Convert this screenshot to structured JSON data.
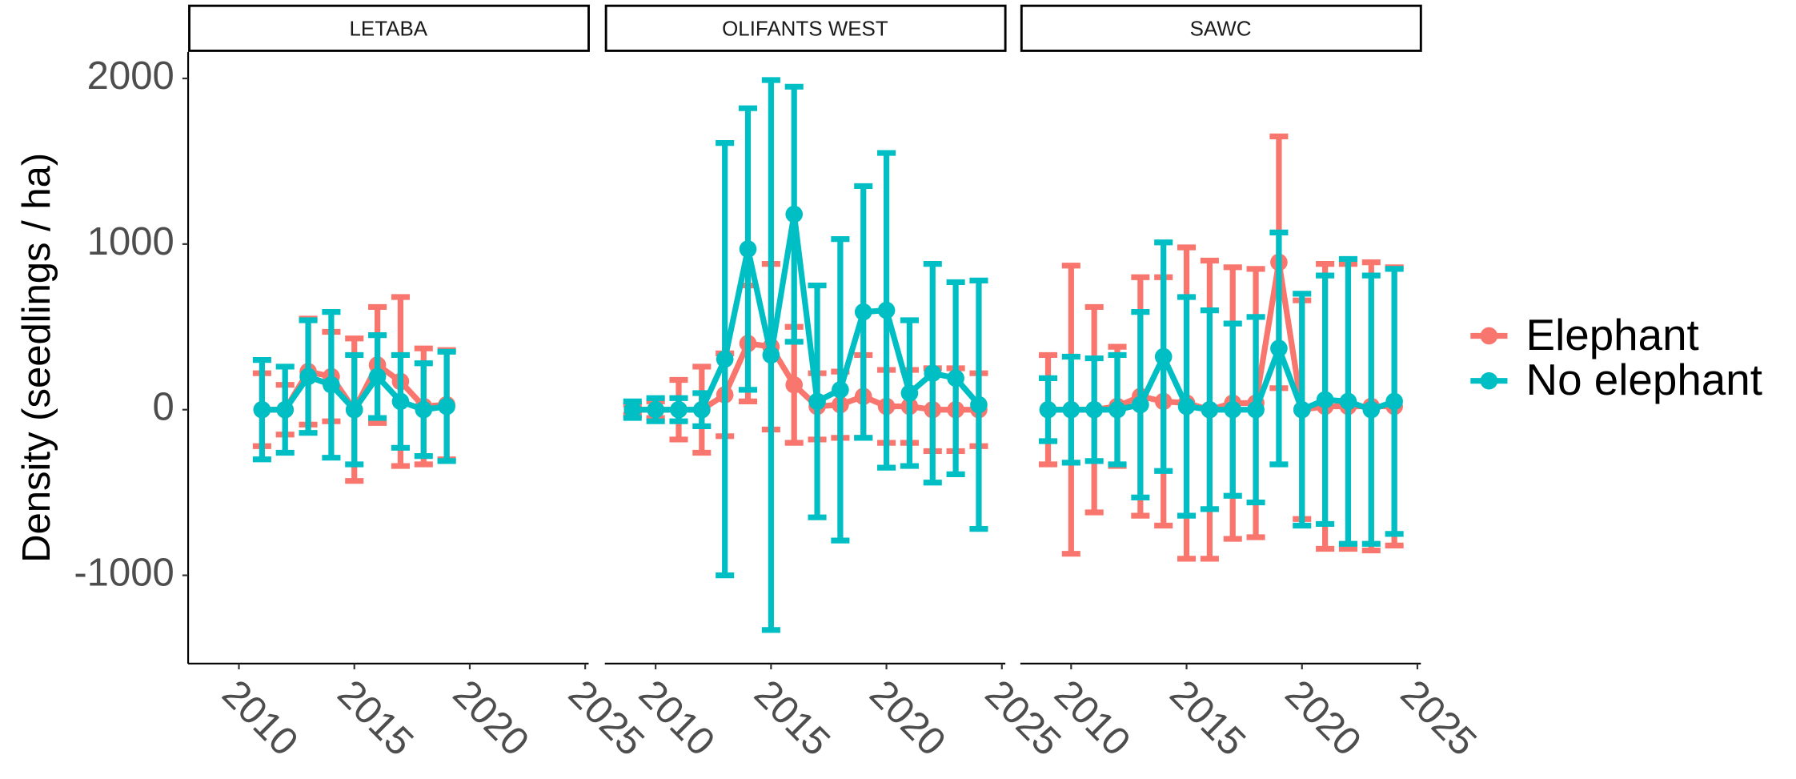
{
  "chart_data": [
    {
      "type": "line",
      "title": "LETABA",
      "y_label": "Density (seedlings / ha)",
      "x": [
        2011,
        2012,
        2013,
        2014,
        2015,
        2016,
        2017,
        2018,
        2019
      ],
      "xlim": [
        2007.8,
        2025.15
      ],
      "xticks": [
        2010,
        2015,
        2020,
        2025
      ],
      "ylim": [
        -1533,
        2160
      ],
      "yticks": [
        -1000,
        0,
        1000,
        2000
      ],
      "series": [
        {
          "name": "Elephant",
          "color": "#F8766D",
          "values": [
            0,
            0,
            230,
            200,
            0,
            270,
            170,
            20,
            30
          ],
          "errors": [
            220,
            150,
            320,
            270,
            430,
            350,
            510,
            350,
            330
          ]
        },
        {
          "name": "No elephant",
          "color": "#00BFC4",
          "values": [
            0,
            0,
            200,
            150,
            0,
            200,
            50,
            0,
            20
          ],
          "errors": [
            300,
            260,
            340,
            440,
            330,
            250,
            280,
            280,
            330
          ]
        }
      ]
    },
    {
      "type": "line",
      "title": "OLIFANTS WEST",
      "x": [
        2009,
        2010,
        2011,
        2012,
        2013,
        2014,
        2015,
        2016,
        2017,
        2018,
        2019,
        2020,
        2021,
        2022,
        2023,
        2024
      ],
      "xlim": [
        2007.8,
        2025.15
      ],
      "xticks": [
        2010,
        2015,
        2020,
        2025
      ],
      "ylim": [
        -1533,
        2160
      ],
      "series": [
        {
          "name": "Elephant",
          "color": "#F8766D",
          "values": [
            0,
            0,
            0,
            0,
            90,
            400,
            380,
            150,
            20,
            30,
            80,
            20,
            20,
            0,
            0,
            0
          ],
          "errors": [
            30,
            50,
            180,
            260,
            250,
            350,
            500,
            350,
            200,
            200,
            250,
            220,
            220,
            250,
            250,
            220
          ]
        },
        {
          "name": "No elephant",
          "color": "#00BFC4",
          "values": [
            0,
            0,
            0,
            0,
            305,
            970,
            330,
            1180,
            50,
            120,
            590,
            600,
            100,
            220,
            190,
            30
          ],
          "errors": [
            50,
            70,
            70,
            100,
            1305,
            850,
            1660,
            770,
            700,
            910,
            760,
            950,
            440,
            660,
            580,
            750
          ]
        }
      ]
    },
    {
      "type": "line",
      "title": "SAWC",
      "x": [
        2009,
        2010,
        2011,
        2012,
        2013,
        2014,
        2015,
        2016,
        2017,
        2018,
        2019,
        2020,
        2021,
        2022,
        2023,
        2024
      ],
      "xlim": [
        2007.8,
        2025.15
      ],
      "xticks": [
        2010,
        2015,
        2020,
        2025
      ],
      "ylim": [
        -1533,
        2160
      ],
      "series": [
        {
          "name": "Elephant",
          "color": "#F8766D",
          "values": [
            0,
            0,
            0,
            20,
            80,
            50,
            40,
            0,
            40,
            40,
            890,
            0,
            20,
            20,
            20,
            20
          ],
          "errors": [
            330,
            870,
            620,
            360,
            720,
            750,
            940,
            900,
            820,
            810,
            760,
            660,
            860,
            860,
            870,
            840
          ]
        },
        {
          "name": "No elephant",
          "color": "#00BFC4",
          "values": [
            0,
            0,
            0,
            0,
            30,
            320,
            20,
            0,
            0,
            0,
            370,
            0,
            60,
            50,
            0,
            50
          ],
          "errors": [
            190,
            320,
            310,
            330,
            560,
            690,
            660,
            600,
            520,
            560,
            700,
            700,
            750,
            860,
            810,
            800
          ]
        }
      ]
    }
  ]
}
